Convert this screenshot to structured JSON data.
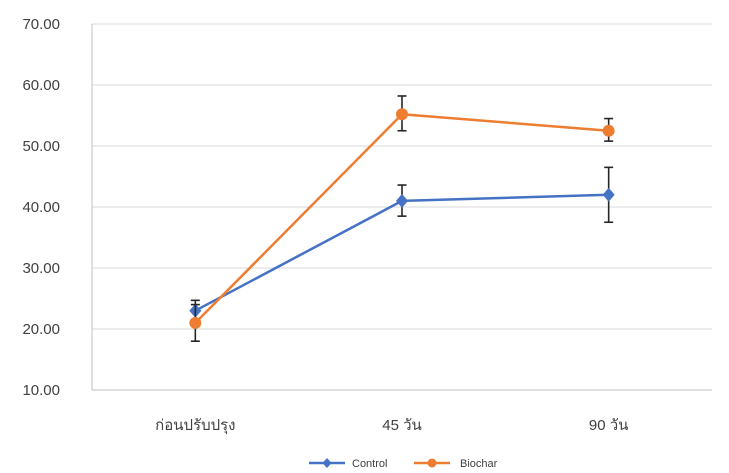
{
  "chart_data": {
    "type": "line",
    "title": "",
    "xlabel": "",
    "ylabel": "",
    "categories": [
      "ก่อนปรับปรุง",
      "45 วัน",
      "90 วัน"
    ],
    "ylim": [
      10,
      70
    ],
    "yticks": [
      "10.00",
      "20.00",
      "30.00",
      "40.00",
      "50.00",
      "60.00",
      "70.00"
    ],
    "grid": true,
    "legend_position": "bottom",
    "series": [
      {
        "name": "Control",
        "color": "#4472C4",
        "marker": "diamond",
        "values": [
          23.0,
          41.0,
          42.0
        ],
        "error_low": [
          21.5,
          38.5,
          37.5
        ],
        "error_high": [
          24.7,
          43.6,
          46.5
        ]
      },
      {
        "name": "Biochar",
        "color": "#ED7D31",
        "marker": "circle",
        "values": [
          21.0,
          55.2,
          52.5
        ],
        "error_low": [
          18.0,
          52.5,
          50.8
        ],
        "error_high": [
          24.0,
          58.2,
          54.5
        ]
      }
    ]
  }
}
